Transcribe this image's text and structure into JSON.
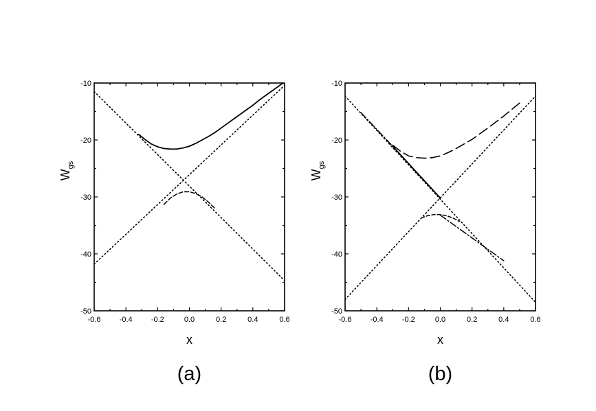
{
  "chart_data": [
    {
      "panel_label": "(a)",
      "type": "line",
      "xlabel": "x",
      "ylabel": {
        "main": "W",
        "sub": "gs"
      },
      "xlim": [
        -0.6,
        0.6
      ],
      "ylim": [
        -50,
        -10
      ],
      "xticks": [
        "-0.6",
        "-0.4",
        "-0.2",
        "0.0",
        "0.2",
        "0.4",
        "0.6"
      ],
      "yticks": [
        "-10",
        "-20",
        "-30",
        "-40",
        "-50"
      ],
      "series": [
        {
          "style": "dotted",
          "x": [
            -0.6,
            0.6
          ],
          "y": [
            -11.5,
            -44.7
          ]
        },
        {
          "style": "dotted",
          "x": [
            -0.6,
            0.6
          ],
          "y": [
            -41.8,
            -10.4
          ]
        },
        {
          "style": "solid",
          "x": [
            -0.32,
            -0.28,
            -0.24,
            -0.2,
            -0.16,
            -0.12,
            -0.08,
            -0.04,
            0.0,
            0.04,
            0.08,
            0.12,
            0.16,
            0.2,
            0.24,
            0.28,
            0.32,
            0.36,
            0.4,
            0.44,
            0.48,
            0.52,
            0.56,
            0.6
          ],
          "y": [
            -19.0,
            -19.9,
            -20.7,
            -21.2,
            -21.5,
            -21.6,
            -21.6,
            -21.4,
            -21.1,
            -20.6,
            -20.0,
            -19.4,
            -18.7,
            -17.9,
            -17.1,
            -16.3,
            -15.5,
            -14.7,
            -13.9,
            -13.0,
            -12.2,
            -11.4,
            -10.6,
            -9.8
          ]
        },
        {
          "style": "dashed",
          "x": [
            -0.16,
            -0.12,
            -0.08,
            -0.04,
            0.0,
            0.04,
            0.08,
            0.12,
            0.16
          ],
          "y": [
            -31.3,
            -30.2,
            -29.5,
            -29.1,
            -29.1,
            -29.4,
            -30.0,
            -30.9,
            -32.0
          ]
        }
      ]
    },
    {
      "panel_label": "(b)",
      "type": "line",
      "xlabel": "x",
      "ylabel": {
        "main": "W",
        "sub": "gs"
      },
      "xlim": [
        -0.6,
        0.6
      ],
      "ylim": [
        -50,
        -10
      ],
      "xticks": [
        "-0.6",
        "-0.4",
        "-0.2",
        "0.0",
        "0.2",
        "0.4",
        "0.6"
      ],
      "yticks": [
        "-10",
        "-20",
        "-30",
        "-40",
        "-50"
      ],
      "series": [
        {
          "style": "dotted",
          "x": [
            -0.6,
            0.6
          ],
          "y": [
            -12.3,
            -48.5
          ]
        },
        {
          "style": "dotted",
          "x": [
            -0.6,
            0.6
          ],
          "y": [
            -48.0,
            -12.3
          ]
        },
        {
          "style": "dashdot",
          "x": [
            -0.5,
            -0.3,
            0.0
          ],
          "y": [
            -15.2,
            -21.1,
            -30.2
          ]
        },
        {
          "style": "solid",
          "x": [
            -0.3,
            0.0
          ],
          "y": [
            -21.1,
            -30.2
          ]
        },
        {
          "style": "longdash",
          "x": [
            -0.3,
            -0.25,
            -0.2,
            -0.15,
            -0.1,
            -0.05,
            0.0,
            0.05,
            0.1,
            0.15,
            0.2,
            0.3,
            0.4,
            0.5
          ],
          "y": [
            -20.9,
            -22.0,
            -22.8,
            -23.1,
            -23.2,
            -23.1,
            -22.8,
            -22.2,
            -21.5,
            -20.7,
            -19.9,
            -17.9,
            -15.8,
            -13.5
          ]
        },
        {
          "style": "shortdash",
          "x": [
            -0.12,
            -0.08,
            -0.04,
            0.0,
            0.04,
            0.08,
            0.12
          ],
          "y": [
            -33.7,
            -33.3,
            -33.1,
            -33.1,
            -33.3,
            -33.7,
            -34.3
          ]
        },
        {
          "style": "dashdot",
          "x": [
            0.0,
            0.4
          ],
          "y": [
            -33.2,
            -41.2
          ]
        }
      ]
    }
  ]
}
